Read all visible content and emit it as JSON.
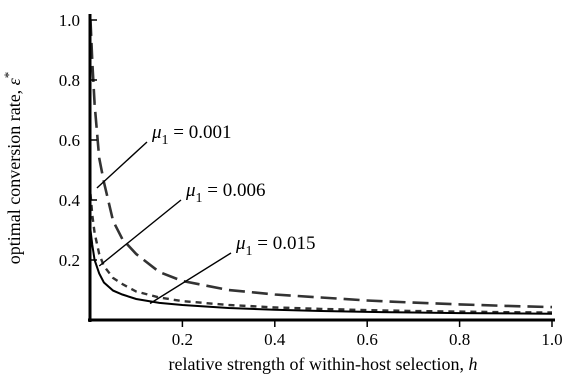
{
  "chart_data": {
    "type": "line",
    "xlabel": "relative strength of within-host selection, ",
    "xlabel_var": "h",
    "ylabel": "optimal conversion rate, ",
    "ylabel_var": "ε",
    "ylabel_sup": "*",
    "xlim": [
      0,
      1.0
    ],
    "ylim": [
      0,
      1.0
    ],
    "xticks": [
      "0.2",
      "0.4",
      "0.6",
      "0.8",
      "1.0"
    ],
    "yticks": [
      "0.2",
      "0.4",
      "0.6",
      "0.8",
      "1.0"
    ],
    "grid": false,
    "series": [
      {
        "name": "μ1 = 0.001",
        "label_parts": [
          "μ",
          "1",
          " = 0.001"
        ],
        "style": "long-dash",
        "color": "#333333",
        "x": [
          0.001,
          0.005,
          0.01,
          0.02,
          0.03,
          0.05,
          0.07,
          0.1,
          0.15,
          0.2,
          0.3,
          0.4,
          0.5,
          0.6,
          0.7,
          0.8,
          0.9,
          1.0
        ],
        "y": [
          1.0,
          0.86,
          0.72,
          0.54,
          0.46,
          0.33,
          0.27,
          0.22,
          0.16,
          0.13,
          0.1,
          0.085,
          0.075,
          0.065,
          0.058,
          0.052,
          0.047,
          0.043
        ]
      },
      {
        "name": "μ1 = 0.006",
        "label_parts": [
          "μ",
          "1",
          " = 0.006"
        ],
        "style": "short-dash",
        "color": "#333333",
        "x": [
          0.001,
          0.005,
          0.01,
          0.02,
          0.03,
          0.05,
          0.07,
          0.1,
          0.15,
          0.2,
          0.3,
          0.4,
          0.5,
          0.6,
          0.7,
          0.8,
          0.9,
          1.0
        ],
        "y": [
          0.42,
          0.35,
          0.29,
          0.22,
          0.18,
          0.14,
          0.12,
          0.095,
          0.075,
          0.063,
          0.05,
          0.042,
          0.037,
          0.033,
          0.03,
          0.028,
          0.026,
          0.025
        ]
      },
      {
        "name": "μ1 = 0.015",
        "label_parts": [
          "μ",
          "1",
          " = 0.015"
        ],
        "style": "solid",
        "color": "#000000",
        "x": [
          0.001,
          0.005,
          0.01,
          0.02,
          0.03,
          0.05,
          0.07,
          0.1,
          0.15,
          0.2,
          0.3,
          0.4,
          0.5,
          0.6,
          0.7,
          0.8,
          0.9,
          1.0
        ],
        "y": [
          0.3,
          0.25,
          0.2,
          0.155,
          0.125,
          0.098,
          0.085,
          0.07,
          0.057,
          0.05,
          0.04,
          0.034,
          0.03,
          0.027,
          0.025,
          0.023,
          0.022,
          0.021
        ]
      }
    ],
    "annotations": [
      {
        "series": 0,
        "point_x": 0.015,
        "point_y": 0.44
      },
      {
        "series": 1,
        "point_x": 0.02,
        "point_y": 0.18
      },
      {
        "series": 2,
        "point_x": 0.13,
        "point_y": 0.055
      }
    ]
  }
}
